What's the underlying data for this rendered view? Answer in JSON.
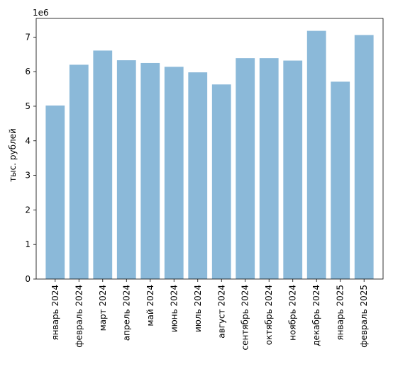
{
  "chart_data": {
    "type": "bar",
    "categories": [
      "январь 2024",
      "февраль 2024",
      "март 2024",
      "апрель 2024",
      "май 2024",
      "июнь 2024",
      "июль 2024",
      "август 2024",
      "сентябрь 2024",
      "октябрь 2024",
      "ноябрь 2024",
      "декабрь 2024",
      "январь 2025",
      "февраль 2025"
    ],
    "values": [
      5020000,
      6200000,
      6610000,
      6330000,
      6250000,
      6140000,
      5980000,
      5630000,
      6390000,
      6390000,
      6320000,
      7180000,
      5710000,
      7060000
    ],
    "title": "",
    "xlabel": "",
    "ylabel": "тыс. рублей",
    "ylim": [
      0,
      7540000
    ],
    "yticks": [
      0,
      1,
      2,
      3,
      4,
      5,
      6,
      7
    ],
    "scale_label": "1e6",
    "grid": false,
    "colors": {
      "bar": "#8bb9d9"
    }
  }
}
